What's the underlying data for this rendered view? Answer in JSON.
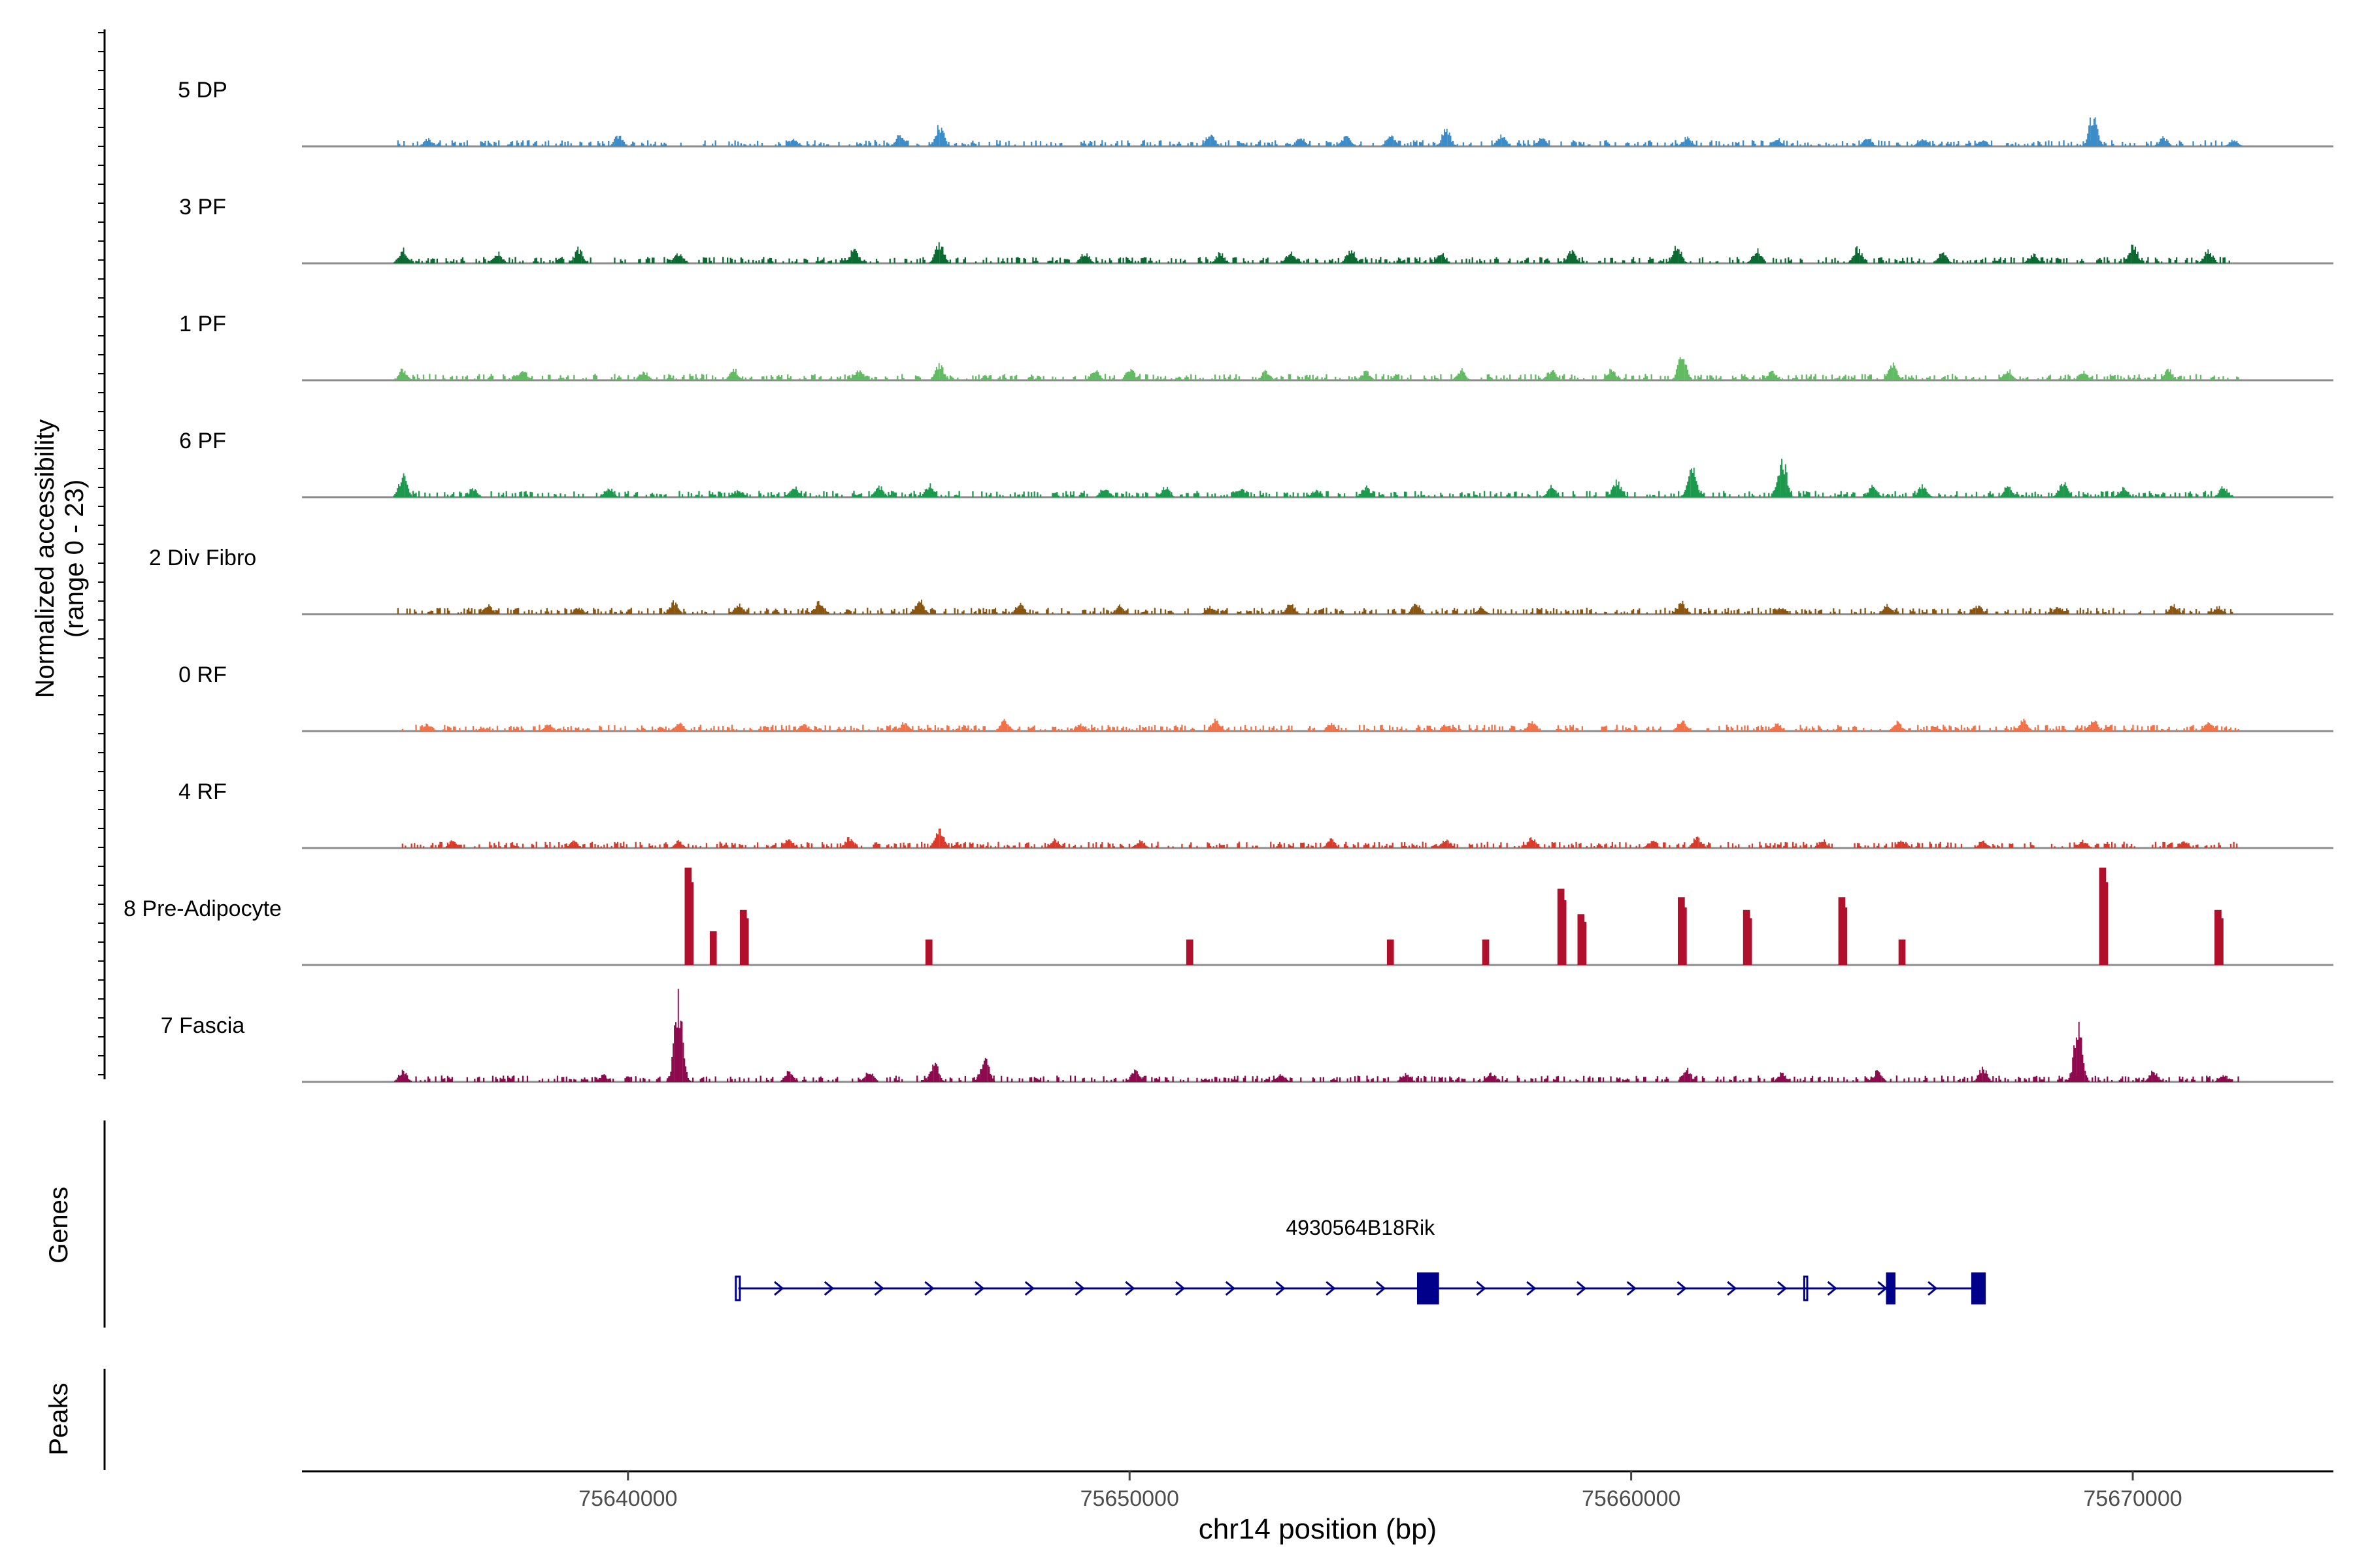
{
  "chart_data": {
    "type": "coverage-track",
    "y_axis_label_line1": "Normalized accessibility",
    "y_axis_label_line2": "(range 0 - 23)",
    "y_range": [
      0,
      23
    ],
    "x_range": [
      75633500,
      75674000
    ],
    "x_ticks": [
      75640000,
      75650000,
      75660000,
      75670000
    ],
    "x_tick_labels": [
      "75640000",
      "75650000",
      "75660000",
      "75670000"
    ],
    "x_label": "chr14 position (bp)",
    "tracks": [
      {
        "name": "5 DP",
        "color": "#3a8dc8",
        "peaks": [
          [
            75636000,
            2
          ],
          [
            75639800,
            3
          ],
          [
            75643300,
            2
          ],
          [
            75645400,
            3
          ],
          [
            75646200,
            6
          ],
          [
            75651600,
            4
          ],
          [
            75653400,
            2.5
          ],
          [
            75654300,
            3
          ],
          [
            75655200,
            3
          ],
          [
            75656300,
            5
          ],
          [
            75657400,
            3
          ],
          [
            75658200,
            2.5
          ],
          [
            75661100,
            2.5
          ],
          [
            75662900,
            2.5
          ],
          [
            75664700,
            2.5
          ],
          [
            75665800,
            2.5
          ],
          [
            75667000,
            2
          ],
          [
            75669200,
            9
          ],
          [
            75670600,
            2.5
          ],
          [
            75672000,
            2
          ]
        ]
      },
      {
        "name": "3 PF",
        "color": "#0b6a32",
        "peaks": [
          [
            75635500,
            4
          ],
          [
            75637400,
            3
          ],
          [
            75639000,
            4
          ],
          [
            75641000,
            3
          ],
          [
            75644500,
            4
          ],
          [
            75646200,
            5.5
          ],
          [
            75649100,
            3
          ],
          [
            75651800,
            3
          ],
          [
            75653200,
            3
          ],
          [
            75654400,
            4
          ],
          [
            75656200,
            3
          ],
          [
            75658800,
            4
          ],
          [
            75660900,
            5
          ],
          [
            75662500,
            4
          ],
          [
            75664500,
            4.5
          ],
          [
            75666200,
            3
          ],
          [
            75668000,
            2.5
          ],
          [
            75670000,
            5
          ],
          [
            75671500,
            3.5
          ]
        ]
      },
      {
        "name": "1 PF",
        "color": "#62bb62",
        "peaks": [
          [
            75635500,
            3
          ],
          [
            75637900,
            2.5
          ],
          [
            75640300,
            2.5
          ],
          [
            75642100,
            3
          ],
          [
            75644600,
            3
          ],
          [
            75646200,
            4.5
          ],
          [
            75649300,
            3
          ],
          [
            75650000,
            3.5
          ],
          [
            75652700,
            2.5
          ],
          [
            75654700,
            2.5
          ],
          [
            75656600,
            3
          ],
          [
            75658400,
            3
          ],
          [
            75659600,
            3
          ],
          [
            75661000,
            7
          ],
          [
            75662800,
            2.5
          ],
          [
            75665200,
            5
          ],
          [
            75667500,
            3
          ],
          [
            75669000,
            2.5
          ],
          [
            75670700,
            3
          ]
        ]
      },
      {
        "name": "6 PF",
        "color": "#1b9a4e",
        "peaks": [
          [
            75635500,
            6
          ],
          [
            75636900,
            2.5
          ],
          [
            75639600,
            3
          ],
          [
            75642200,
            2
          ],
          [
            75643300,
            3
          ],
          [
            75645000,
            3
          ],
          [
            75646000,
            3.5
          ],
          [
            75649500,
            3
          ],
          [
            75650700,
            3
          ],
          [
            75652200,
            2.5
          ],
          [
            75653700,
            2
          ],
          [
            75654700,
            3
          ],
          [
            75658400,
            3
          ],
          [
            75659700,
            4.5
          ],
          [
            75661200,
            8
          ],
          [
            75663000,
            11
          ],
          [
            75664800,
            3
          ],
          [
            75665800,
            3.5
          ],
          [
            75667500,
            3
          ],
          [
            75668600,
            4
          ],
          [
            75669800,
            2.5
          ],
          [
            75671800,
            3
          ]
        ]
      },
      {
        "name": "2 Div Fibro",
        "color": "#8a560f",
        "peaks": [
          [
            75637200,
            2.5
          ],
          [
            75639000,
            2
          ],
          [
            75640900,
            3.5
          ],
          [
            75642200,
            3
          ],
          [
            75643800,
            3.5
          ],
          [
            75645800,
            4
          ],
          [
            75647800,
            3
          ],
          [
            75649800,
            2.5
          ],
          [
            75651600,
            2
          ],
          [
            75653200,
            3
          ],
          [
            75655700,
            3
          ],
          [
            75657000,
            2
          ],
          [
            75661000,
            3.5
          ],
          [
            75663000,
            2
          ],
          [
            75665100,
            2.5
          ],
          [
            75666900,
            2.5
          ],
          [
            75668500,
            2
          ],
          [
            75670800,
            2.5
          ],
          [
            75671700,
            2
          ]
        ]
      },
      {
        "name": "0 RF",
        "color": "#f07248",
        "peaks": [
          [
            75636000,
            2
          ],
          [
            75638400,
            2
          ],
          [
            75641000,
            2.5
          ],
          [
            75643500,
            2
          ],
          [
            75645500,
            2.5
          ],
          [
            75647500,
            3
          ],
          [
            75649000,
            2
          ],
          [
            75651700,
            3
          ],
          [
            75654000,
            2
          ],
          [
            75656300,
            2
          ],
          [
            75658000,
            2.5
          ],
          [
            75661000,
            3
          ],
          [
            75662900,
            2
          ],
          [
            75665300,
            2.5
          ],
          [
            75667800,
            3
          ],
          [
            75669200,
            3.5
          ],
          [
            75671500,
            2.5
          ]
        ]
      },
      {
        "name": "4 RF",
        "color": "#d93a29",
        "peaks": [
          [
            75636500,
            2
          ],
          [
            75638900,
            2
          ],
          [
            75641000,
            2
          ],
          [
            75643200,
            2.5
          ],
          [
            75644400,
            3
          ],
          [
            75646200,
            5
          ],
          [
            75648500,
            2.5
          ],
          [
            75650200,
            2
          ],
          [
            75654000,
            2.5
          ],
          [
            75656300,
            2.5
          ],
          [
            75658000,
            3
          ],
          [
            75660400,
            2
          ],
          [
            75661300,
            3
          ],
          [
            75663800,
            2.5
          ],
          [
            75665400,
            2
          ],
          [
            75667000,
            2
          ],
          [
            75669000,
            2
          ],
          [
            75671000,
            2
          ]
        ]
      },
      {
        "name": "8 Pre-Adipocyte",
        "color": "#b0102b",
        "peaks": [
          [
            75641200,
            23
          ],
          [
            75641700,
            8
          ],
          [
            75642300,
            13
          ],
          [
            75646000,
            6
          ],
          [
            75651200,
            6
          ],
          [
            75655200,
            6
          ],
          [
            75657100,
            6
          ],
          [
            75658600,
            18
          ],
          [
            75659000,
            12
          ],
          [
            75661000,
            16
          ],
          [
            75662300,
            13
          ],
          [
            75664200,
            16
          ],
          [
            75665400,
            6
          ],
          [
            75669400,
            23
          ],
          [
            75671700,
            13
          ]
        ]
      },
      {
        "name": "7 Fascia",
        "color": "#8e0a4e",
        "peaks": [
          [
            75635500,
            3
          ],
          [
            75639500,
            2
          ],
          [
            75641000,
            23
          ],
          [
            75643200,
            3
          ],
          [
            75644800,
            3
          ],
          [
            75646100,
            5
          ],
          [
            75647100,
            7
          ],
          [
            75650100,
            3.5
          ],
          [
            75653000,
            2.5
          ],
          [
            75655500,
            2.5
          ],
          [
            75657200,
            2.5
          ],
          [
            75661100,
            3.5
          ],
          [
            75663000,
            2.5
          ],
          [
            75664900,
            3
          ],
          [
            75667000,
            4
          ],
          [
            75668900,
            15
          ],
          [
            75670400,
            3
          ],
          [
            75671800,
            2
          ]
        ]
      }
    ],
    "genes": [
      {
        "name": "4930564B18Rik",
        "start": 75642200,
        "end": 75667000,
        "strand": "+",
        "color": "#00008b",
        "exons": [
          [
            75642150,
            75642230
          ],
          [
            75655750,
            75656150
          ],
          [
            75663450,
            75663510
          ],
          [
            75665100,
            75665250
          ],
          [
            75666800,
            75667050
          ]
        ]
      }
    ],
    "panels": [
      "Genes",
      "Peaks"
    ],
    "peaks_track": []
  }
}
